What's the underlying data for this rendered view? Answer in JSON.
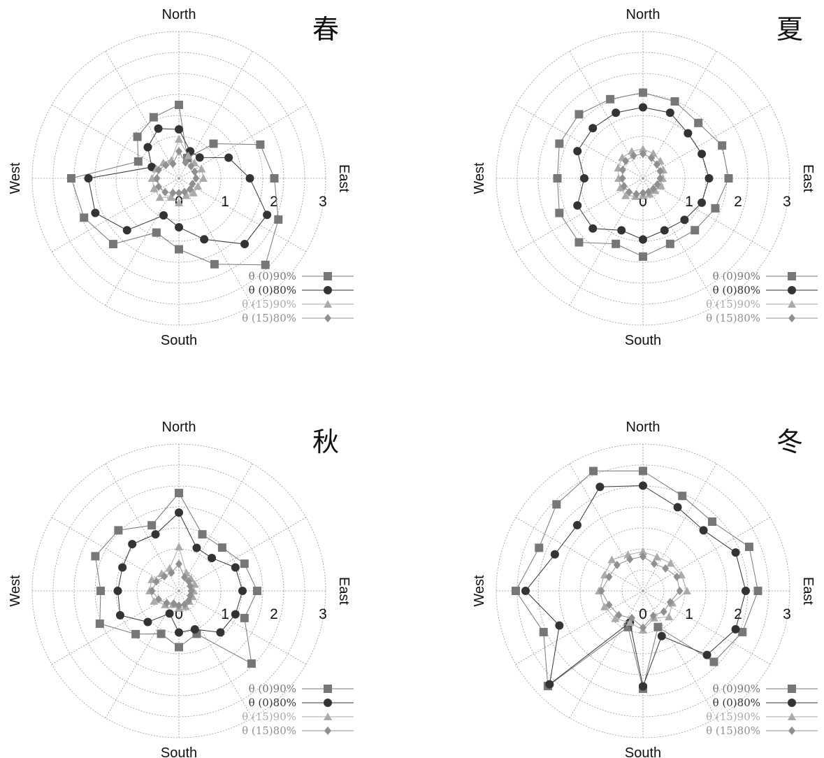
{
  "colors": {
    "theta0_90": "#777777",
    "theta0_80": "#333333",
    "theta15_90": "#aaaaaa",
    "theta15_80": "#8f8f8f",
    "grid": "#9a9a9a"
  },
  "chart_data": [
    {
      "type": "polar-line",
      "title": "春",
      "directions": {
        "north": "North",
        "east": "East",
        "south": "South",
        "west": "West"
      },
      "radial_ticks": [
        "0",
        "1",
        "2",
        "3"
      ],
      "rlim": [
        0,
        3
      ],
      "angles_deg_clockwise_from_north": [
        0,
        22.5,
        45,
        67.5,
        90,
        112.5,
        135,
        157.5,
        180,
        202.5,
        225,
        247.5,
        270,
        292.5,
        315,
        337.5
      ],
      "legend_position": "bottom-right",
      "grid": true,
      "series": [
        {
          "name": "θ (0)90%",
          "marker": "square",
          "color_key": "theta0_90",
          "values": [
            1.5,
            0.45,
            1.0,
            1.8,
            1.95,
            2.2,
            2.5,
            1.9,
            1.45,
            1.2,
            1.9,
            2.1,
            2.2,
            0.9,
            1.2,
            1.35
          ]
        },
        {
          "name": "θ (0)80%",
          "marker": "circle",
          "color_key": "theta0_80",
          "values": [
            1.0,
            0.6,
            0.6,
            1.1,
            1.45,
            1.95,
            1.9,
            1.35,
            1.0,
            0.82,
            1.5,
            1.85,
            1.85,
            0.6,
            0.9,
            1.1
          ]
        },
        {
          "name": "θ (15)90%",
          "marker": "triangle",
          "color_key": "theta15_90",
          "values": [
            0.8,
            0.5,
            0.45,
            0.5,
            0.5,
            0.42,
            0.42,
            0.38,
            0.5,
            0.42,
            0.55,
            0.55,
            0.55,
            0.5,
            0.45,
            0.4
          ]
        },
        {
          "name": "θ (15)80%",
          "marker": "diamond",
          "color_key": "theta15_80",
          "values": [
            0.55,
            0.35,
            0.35,
            0.35,
            0.35,
            0.3,
            0.32,
            0.3,
            0.3,
            0.32,
            0.4,
            0.45,
            0.45,
            0.45,
            0.38,
            0.32
          ]
        }
      ]
    },
    {
      "type": "polar-line",
      "title": "夏",
      "directions": {
        "north": "North",
        "east": "East",
        "south": "South",
        "west": "West"
      },
      "radial_ticks": [
        "0",
        "1",
        "2",
        "3"
      ],
      "rlim": [
        0,
        3
      ],
      "angles_deg_clockwise_from_north": [
        0,
        22.5,
        45,
        67.5,
        90,
        112.5,
        135,
        157.5,
        180,
        202.5,
        225,
        247.5,
        270,
        292.5,
        315,
        337.5
      ],
      "legend_position": "bottom-right",
      "grid": true,
      "series": [
        {
          "name": "θ (0)90%",
          "marker": "square",
          "color_key": "theta0_90",
          "values": [
            1.75,
            1.7,
            1.6,
            1.75,
            1.75,
            1.6,
            1.5,
            1.45,
            1.6,
            1.45,
            1.85,
            1.85,
            1.75,
            1.85,
            1.85,
            1.75
          ]
        },
        {
          "name": "θ (0)80%",
          "marker": "circle",
          "color_key": "theta0_80",
          "values": [
            1.45,
            1.45,
            1.3,
            1.3,
            1.35,
            1.3,
            1.2,
            1.15,
            1.25,
            1.15,
            1.45,
            1.45,
            1.2,
            1.45,
            1.45,
            1.45
          ]
        },
        {
          "name": "θ (15)90%",
          "marker": "triangle",
          "color_key": "theta15_90",
          "values": [
            0.6,
            0.55,
            0.5,
            0.45,
            0.4,
            0.4,
            0.35,
            0.35,
            0.35,
            0.4,
            0.5,
            0.5,
            0.5,
            0.55,
            0.6,
            0.6
          ]
        },
        {
          "name": "θ (15)80%",
          "marker": "diamond",
          "color_key": "theta15_80",
          "values": [
            0.5,
            0.45,
            0.4,
            0.38,
            0.35,
            0.32,
            0.3,
            0.3,
            0.3,
            0.35,
            0.4,
            0.42,
            0.42,
            0.45,
            0.5,
            0.5
          ]
        }
      ]
    },
    {
      "type": "polar-line",
      "title": "秋",
      "directions": {
        "north": "North",
        "east": "East",
        "south": "South",
        "west": "West"
      },
      "radial_ticks": [
        "0",
        "1",
        "2",
        "3"
      ],
      "rlim": [
        0,
        3
      ],
      "angles_deg_clockwise_from_north": [
        0,
        22.5,
        45,
        67.5,
        90,
        112.5,
        135,
        157.5,
        180,
        202.5,
        225,
        247.5,
        270,
        292.5,
        315,
        337.5
      ],
      "legend_position": "bottom-right",
      "grid": true,
      "series": [
        {
          "name": "θ (0)90%",
          "marker": "square",
          "color_key": "theta0_90",
          "values": [
            2.0,
            1.25,
            1.25,
            1.45,
            1.6,
            1.45,
            2.1,
            0.95,
            1.15,
            0.95,
            1.25,
            1.75,
            1.6,
            1.85,
            1.75,
            1.45
          ]
        },
        {
          "name": "θ (0)80%",
          "marker": "circle",
          "color_key": "theta0_80",
          "values": [
            1.6,
            0.95,
            0.95,
            1.25,
            1.3,
            1.25,
            1.2,
            0.85,
            0.85,
            0.5,
            0.9,
            1.3,
            1.25,
            1.25,
            1.35,
            1.25
          ]
        },
        {
          "name": "θ (15)90%",
          "marker": "triangle",
          "color_key": "theta15_90",
          "values": [
            0.9,
            0.4,
            0.35,
            0.35,
            0.3,
            0.3,
            0.3,
            0.35,
            0.35,
            0.3,
            0.4,
            0.55,
            0.6,
            0.6,
            0.5,
            0.5
          ]
        },
        {
          "name": "θ (15)80%",
          "marker": "diamond",
          "color_key": "theta15_80",
          "values": [
            0.55,
            0.3,
            0.28,
            0.25,
            0.25,
            0.25,
            0.28,
            0.3,
            0.3,
            0.28,
            0.35,
            0.45,
            0.55,
            0.5,
            0.42,
            0.4
          ]
        }
      ]
    },
    {
      "type": "polar-line",
      "title": "冬",
      "directions": {
        "north": "North",
        "east": "East",
        "south": "South",
        "west": "West"
      },
      "radial_ticks": [
        "0",
        "1",
        "2",
        "3"
      ],
      "rlim": [
        0,
        3
      ],
      "angles_deg_clockwise_from_north": [
        0,
        22.5,
        45,
        67.5,
        90,
        112.5,
        135,
        157.5,
        180,
        202.5,
        225,
        247.5,
        270,
        292.5,
        315,
        337.5
      ],
      "legend_position": "bottom-right",
      "grid": true,
      "series": [
        {
          "name": "θ (0)90%",
          "marker": "square",
          "color_key": "theta0_90",
          "values": [
            2.45,
            2.1,
            2.0,
            2.35,
            2.35,
            2.2,
            2.05,
            0.8,
            2.0,
            0.8,
            2.75,
            2.2,
            2.6,
            2.3,
            2.5,
            2.65
          ]
        },
        {
          "name": "θ (0)80%",
          "marker": "circle",
          "color_key": "theta0_80",
          "values": [
            2.15,
            1.85,
            1.75,
            2.05,
            2.1,
            2.05,
            1.85,
            1.0,
            1.95,
            0.7,
            2.7,
            1.85,
            2.4,
            1.95,
            1.9,
            2.3
          ]
        },
        {
          "name": "θ (15)90%",
          "marker": "triangle",
          "color_key": "theta15_90",
          "values": [
            0.8,
            0.75,
            0.8,
            0.85,
            0.9,
            0.65,
            0.75,
            0.6,
            0.8,
            0.7,
            0.8,
            0.85,
            0.9,
            0.85,
            0.9,
            0.8
          ]
        },
        {
          "name": "θ (15)80%",
          "marker": "diamond",
          "color_key": "theta15_80",
          "values": [
            0.7,
            0.6,
            0.65,
            0.75,
            0.75,
            0.6,
            0.6,
            0.55,
            0.75,
            0.6,
            0.7,
            0.75,
            0.85,
            0.75,
            0.75,
            0.7
          ]
        }
      ]
    }
  ]
}
